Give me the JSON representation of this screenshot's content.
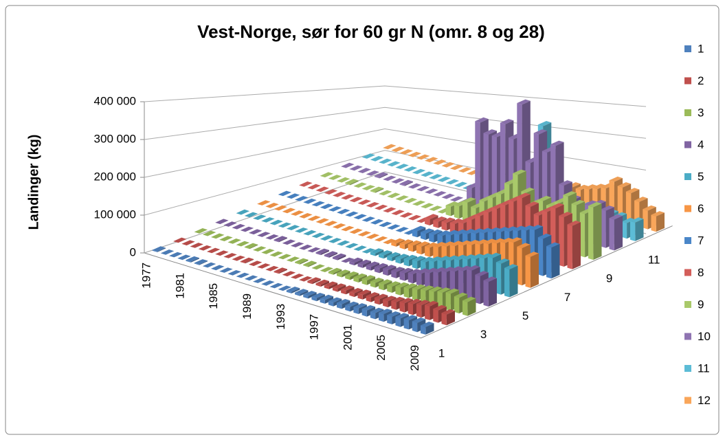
{
  "chart_data": {
    "type": "bar3d",
    "title": "Vest-Norge, sør for 60 gr N (omr. 8 og 28)",
    "ylabel": "Landinger (kg)",
    "categories": [
      1977,
      null,
      null,
      null,
      1981,
      null,
      null,
      null,
      1985,
      null,
      null,
      null,
      1989,
      null,
      null,
      null,
      1993,
      null,
      null,
      null,
      1997,
      null,
      null,
      null,
      2001,
      null,
      null,
      null,
      2005,
      null,
      null,
      null,
      2009
    ],
    "ylim": [
      0,
      400000
    ],
    "yticks": [
      0,
      {
        "value": 100000,
        "label": "100 000"
      },
      {
        "value": 200000,
        "label": "200 000"
      },
      {
        "value": 300000,
        "label": "300 000"
      },
      {
        "value": 400000,
        "label": "400 000"
      }
    ],
    "zticks": [
      1,
      3,
      5,
      7,
      9,
      11
    ],
    "grid": true,
    "legend": "right",
    "series": [
      {
        "name": "1",
        "color": "#4f81bd",
        "values": [
          2000,
          0,
          0,
          0,
          3000,
          2000,
          0,
          0,
          0,
          0,
          0,
          0,
          0,
          0,
          0,
          0,
          5000,
          6000,
          8000,
          10000,
          12000,
          12000,
          15000,
          15000,
          18000,
          20000,
          20000,
          25000,
          25000,
          28000,
          30000,
          30000,
          25000
        ]
      },
      {
        "name": "2",
        "color": "#c0504d",
        "values": [
          0,
          0,
          0,
          0,
          0,
          0,
          0,
          0,
          2000,
          0,
          0,
          0,
          3000,
          0,
          0,
          0,
          5000,
          6000,
          8000,
          10000,
          12000,
          12000,
          15000,
          15000,
          18000,
          20000,
          25000,
          30000,
          35000,
          40000,
          45000,
          40000,
          35000
        ]
      },
      {
        "name": "3",
        "color": "#9bbb59",
        "values": [
          0,
          0,
          0,
          0,
          0,
          0,
          2000,
          0,
          0,
          0,
          0,
          0,
          3000,
          3000,
          0,
          0,
          5000,
          8000,
          10000,
          12000,
          15000,
          15000,
          18000,
          20000,
          25000,
          30000,
          35000,
          40000,
          45000,
          50000,
          55000,
          50000,
          45000
        ]
      },
      {
        "name": "4",
        "color": "#8064a2",
        "values": [
          0,
          0,
          0,
          0,
          0,
          0,
          0,
          3000,
          0,
          0,
          0,
          0,
          4000,
          4000,
          5000,
          0,
          8000,
          10000,
          12000,
          15000,
          18000,
          20000,
          25000,
          30000,
          40000,
          50000,
          60000,
          70000,
          80000,
          90000,
          100000,
          90000,
          80000
        ]
      },
      {
        "name": "5",
        "color": "#4bacc6",
        "values": [
          0,
          0,
          0,
          0,
          0,
          0,
          0,
          0,
          0,
          0,
          0,
          0,
          0,
          0,
          0,
          0,
          8000,
          10000,
          12000,
          15000,
          20000,
          25000,
          30000,
          40000,
          50000,
          60000,
          70000,
          80000,
          90000,
          100000,
          110000,
          100000,
          90000
        ]
      },
      {
        "name": "6",
        "color": "#f79646",
        "values": [
          0,
          0,
          0,
          0,
          0,
          0,
          0,
          0,
          0,
          0,
          0,
          0,
          0,
          0,
          0,
          0,
          10000,
          15000,
          20000,
          25000,
          30000,
          40000,
          50000,
          60000,
          70000,
          80000,
          90000,
          100000,
          110000,
          120000,
          130000,
          120000,
          100000
        ]
      },
      {
        "name": "7",
        "color": "#4a86c8",
        "values": [
          0,
          0,
          0,
          0,
          0,
          0,
          0,
          0,
          0,
          0,
          0,
          0,
          0,
          0,
          0,
          0,
          20000,
          20000,
          25000,
          30000,
          40000,
          50000,
          60000,
          70000,
          80000,
          90000,
          100000,
          110000,
          120000,
          130000,
          140000,
          120000,
          100000
        ]
      },
      {
        "name": "8",
        "color": "#d35e5a",
        "values": [
          0,
          0,
          0,
          0,
          0,
          0,
          0,
          0,
          0,
          0,
          0,
          0,
          0,
          0,
          0,
          20000,
          20000,
          25000,
          30000,
          40000,
          60000,
          80000,
          100000,
          120000,
          140000,
          160000,
          180000,
          160000,
          140000,
          160000,
          180000,
          160000,
          140000
        ]
      },
      {
        "name": "9",
        "color": "#a9c96a",
        "values": [
          0,
          0,
          0,
          3000,
          0,
          0,
          3000,
          0,
          0,
          0,
          0,
          0,
          0,
          0,
          0,
          30000,
          40000,
          60000,
          50000,
          80000,
          100000,
          120000,
          160000,
          200000,
          150000,
          120000,
          140000,
          130000,
          150000,
          180000,
          160000,
          140000,
          170000
        ]
      },
      {
        "name": "10",
        "color": "#8f74b2",
        "values": [
          0,
          0,
          0,
          0,
          3000,
          0,
          0,
          3000,
          0,
          0,
          0,
          0,
          0,
          0,
          0,
          60000,
          280000,
          250000,
          250000,
          300000,
          260000,
          380000,
          200000,
          300000,
          250000,
          280000,
          160000,
          120000,
          100000,
          120000,
          130000,
          120000,
          100000
        ]
      },
      {
        "name": "11",
        "color": "#5cbcd6",
        "values": [
          0,
          0,
          0,
          0,
          0,
          0,
          0,
          0,
          0,
          0,
          0,
          0,
          0,
          0,
          0,
          20000,
          30000,
          40000,
          50000,
          120000,
          80000,
          280000,
          60000,
          40000,
          40000,
          50000,
          60000,
          40000,
          50000,
          60000,
          60000,
          50000,
          60000
        ]
      },
      {
        "name": "12",
        "color": "#f9a65a",
        "values": [
          0,
          0,
          0,
          0,
          0,
          0,
          0,
          0,
          0,
          0,
          0,
          10000,
          10000,
          0,
          0,
          10000,
          15000,
          20000,
          25000,
          30000,
          40000,
          50000,
          60000,
          60000,
          70000,
          80000,
          90000,
          120000,
          110000,
          100000,
          80000,
          60000,
          50000
        ]
      }
    ]
  }
}
